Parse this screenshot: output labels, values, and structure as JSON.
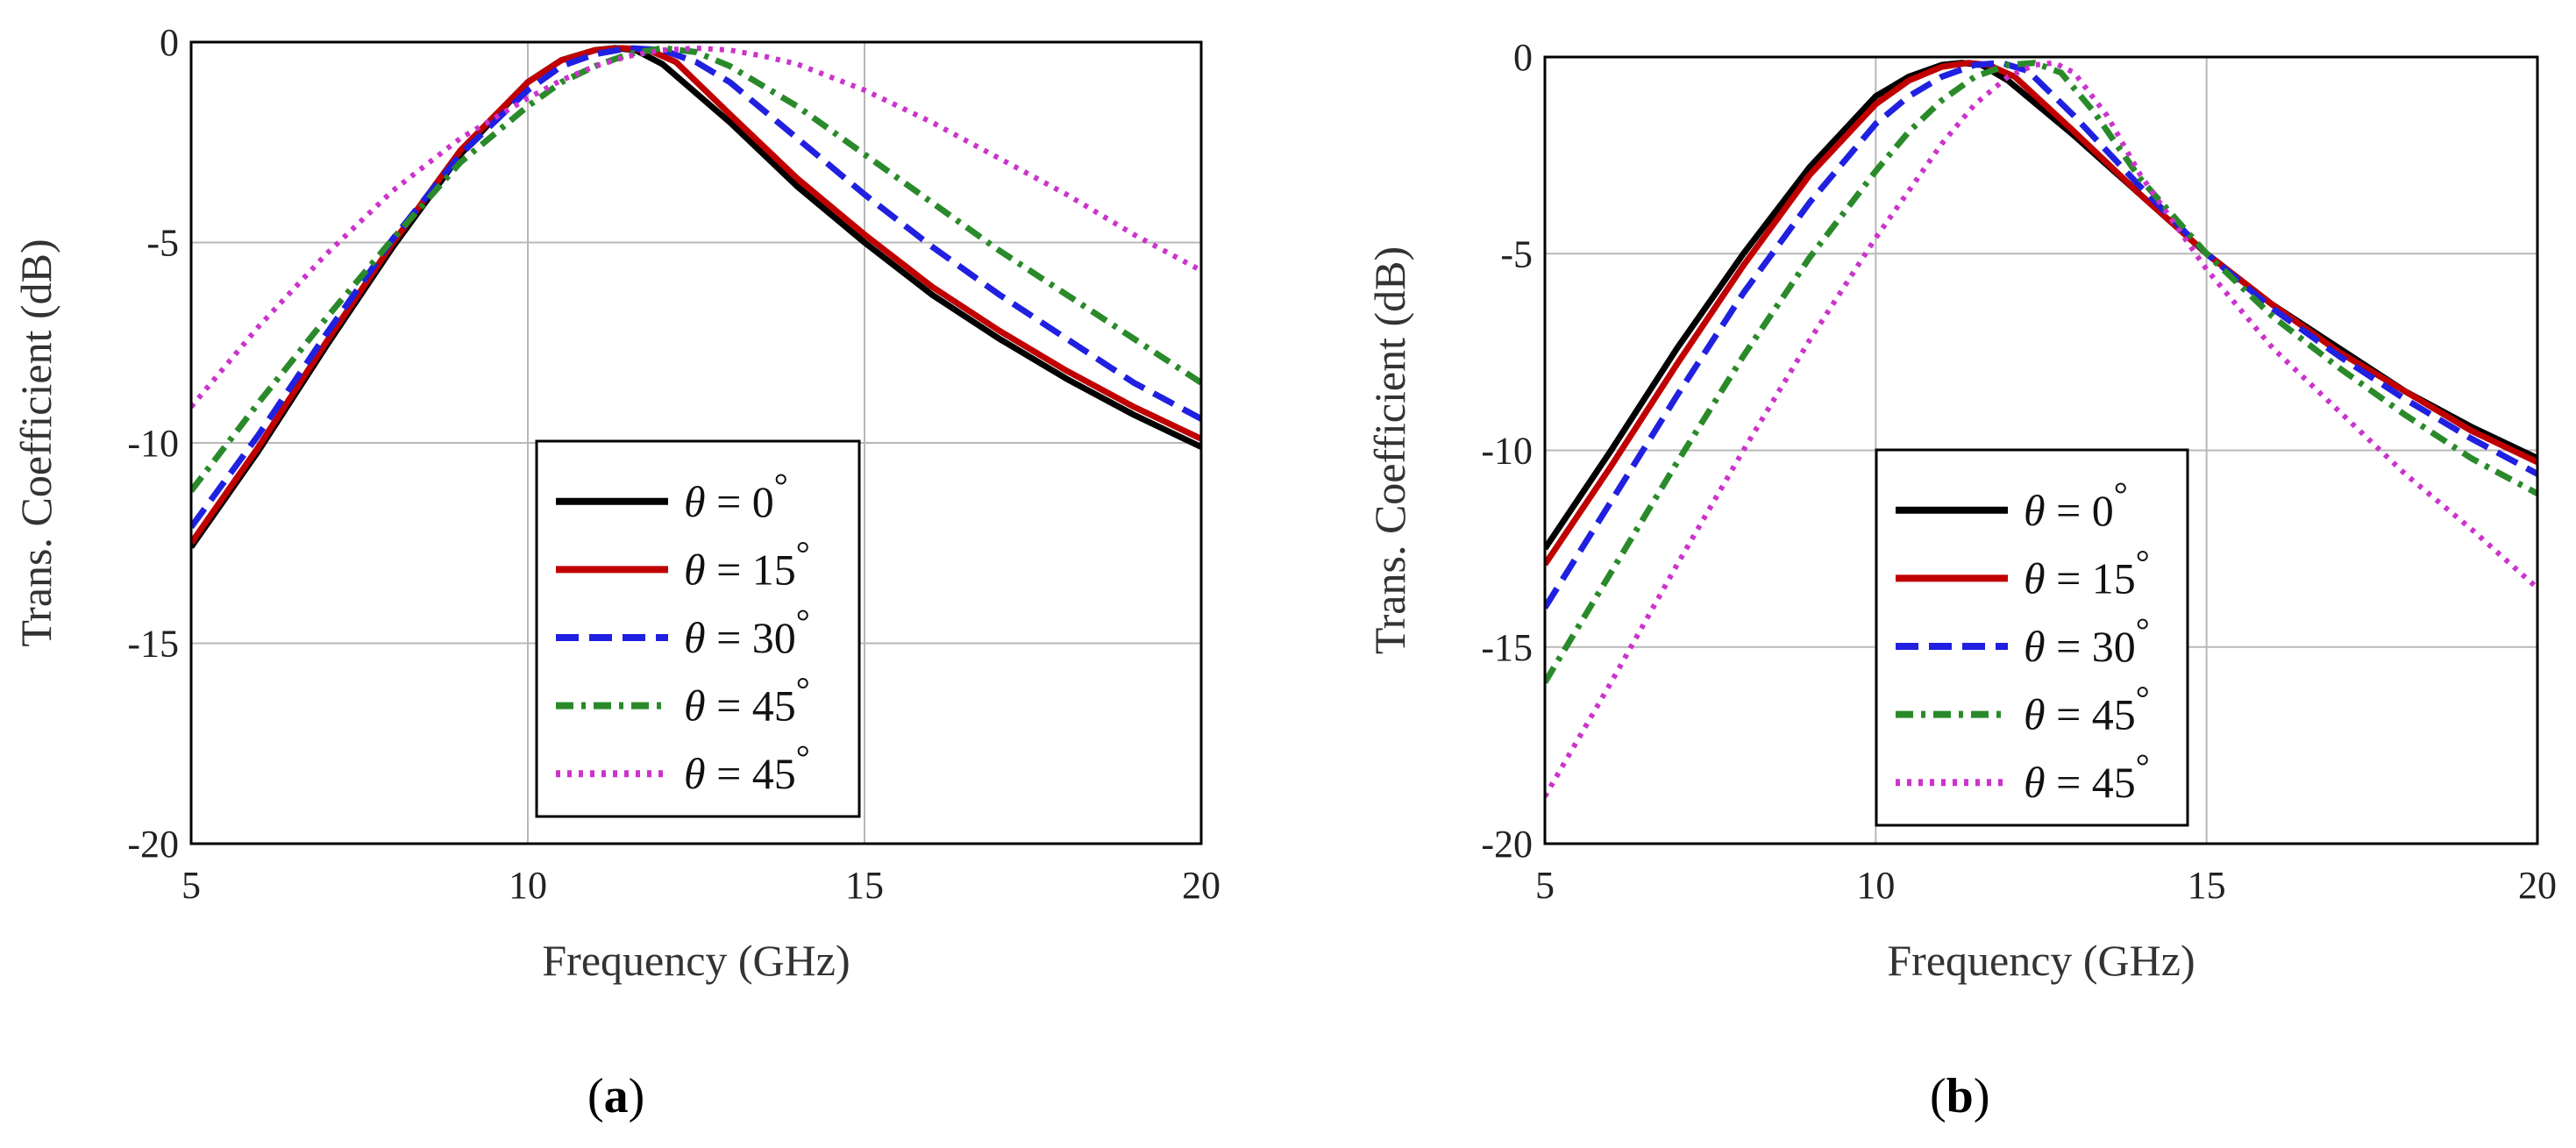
{
  "chart_data": [
    {
      "type": "line",
      "panel": "a",
      "caption_open": "(",
      "caption_letter": "a",
      "caption_close": ")",
      "xlabel": "Frequency (GHz)",
      "ylabel": "Trans. Coefficient (dB)",
      "xlim": [
        5,
        20
      ],
      "ylim": [
        -20,
        0
      ],
      "xticks": [
        5,
        10,
        15,
        20
      ],
      "yticks": [
        0,
        -5,
        -10,
        -15,
        -20
      ],
      "xtick_labels": [
        "5",
        "10",
        "15",
        "20"
      ],
      "ytick_labels": [
        "0",
        "-5",
        "-10",
        "-15",
        "-20"
      ],
      "grid": true,
      "legend_position": "lower-center",
      "series": [
        {
          "name": "θ = 0°",
          "legend_text": "θ = 0",
          "degree": "°",
          "color": "#000000",
          "style": "solid",
          "x": [
            5,
            6,
            7,
            8,
            9,
            10,
            10.5,
            11,
            11.3,
            11.6,
            12,
            13,
            14,
            15,
            16,
            17,
            18,
            19,
            20
          ],
          "y": [
            -12.6,
            -10.2,
            -7.6,
            -5.1,
            -2.8,
            -1.0,
            -0.45,
            -0.2,
            -0.15,
            -0.2,
            -0.55,
            -2.0,
            -3.6,
            -5.0,
            -6.3,
            -7.4,
            -8.4,
            -9.3,
            -10.1
          ]
        },
        {
          "name": "θ = 15°",
          "legend_text": "θ = 15",
          "degree": "°",
          "color": "#c00000",
          "style": "solid",
          "x": [
            5,
            6,
            7,
            8,
            9,
            10,
            10.5,
            11,
            11.4,
            11.8,
            12.2,
            13,
            14,
            15,
            16,
            17,
            18,
            19,
            20
          ],
          "y": [
            -12.5,
            -10.1,
            -7.5,
            -5.0,
            -2.7,
            -1.0,
            -0.45,
            -0.2,
            -0.15,
            -0.2,
            -0.5,
            -1.8,
            -3.4,
            -4.8,
            -6.1,
            -7.2,
            -8.2,
            -9.1,
            -9.9
          ]
        },
        {
          "name": "θ = 30°",
          "legend_text": "θ = 30",
          "degree": "°",
          "color": "#2020e0",
          "style": "dashed",
          "x": [
            5,
            6,
            7,
            8,
            9,
            10,
            10.5,
            11,
            11.5,
            12,
            12.5,
            13,
            14,
            15,
            16,
            17,
            18,
            19,
            20
          ],
          "y": [
            -12.1,
            -9.8,
            -7.3,
            -4.9,
            -2.8,
            -1.2,
            -0.6,
            -0.3,
            -0.15,
            -0.2,
            -0.5,
            -1.0,
            -2.4,
            -3.8,
            -5.1,
            -6.3,
            -7.4,
            -8.5,
            -9.4
          ]
        },
        {
          "name": "θ = 45°",
          "legend_text": "θ = 45",
          "degree": "°",
          "color": "#2a8a2a",
          "style": "dashdot",
          "x": [
            5,
            6,
            7,
            8,
            9,
            10,
            10.5,
            11,
            11.5,
            12,
            12.5,
            13,
            14,
            15,
            16,
            17,
            18,
            19,
            20
          ],
          "y": [
            -11.2,
            -9.0,
            -6.9,
            -4.9,
            -3.0,
            -1.6,
            -1.0,
            -0.6,
            -0.3,
            -0.15,
            -0.25,
            -0.6,
            -1.6,
            -2.8,
            -4.0,
            -5.2,
            -6.3,
            -7.4,
            -8.5
          ]
        },
        {
          "name": "θ = 45°",
          "legend_text": "θ = 45",
          "degree": "°",
          "color": "#cc33cc",
          "style": "dotted",
          "x": [
            5,
            6,
            7,
            8,
            9,
            10,
            10.5,
            11,
            11.5,
            12,
            12.5,
            13,
            13.5,
            14,
            15,
            16,
            17,
            18,
            19,
            20
          ],
          "y": [
            -9.1,
            -7.1,
            -5.3,
            -3.7,
            -2.4,
            -1.4,
            -0.95,
            -0.6,
            -0.35,
            -0.2,
            -0.15,
            -0.2,
            -0.35,
            -0.55,
            -1.2,
            -2.0,
            -2.9,
            -3.8,
            -4.8,
            -5.7
          ]
        }
      ]
    },
    {
      "type": "line",
      "panel": "b",
      "caption_open": "(",
      "caption_letter": "b",
      "caption_close": ")",
      "xlabel": "Frequency (GHz)",
      "ylabel": "Trans. Coefficient (dB)",
      "xlim": [
        5,
        20
      ],
      "ylim": [
        -20,
        0
      ],
      "xticks": [
        5,
        10,
        15,
        20
      ],
      "yticks": [
        0,
        -5,
        -10,
        -15,
        -20
      ],
      "xtick_labels": [
        "5",
        "10",
        "15",
        "20"
      ],
      "ytick_labels": [
        "0",
        "-5",
        "-10",
        "-15",
        "-20"
      ],
      "grid": true,
      "legend_position": "lower-center",
      "series": [
        {
          "name": "θ = 0°",
          "legend_text": "θ = 0",
          "degree": "°",
          "color": "#000000",
          "style": "solid",
          "x": [
            5,
            6,
            7,
            8,
            9,
            10,
            10.5,
            11,
            11.3,
            11.6,
            12,
            13,
            14,
            15,
            16,
            17,
            18,
            19,
            20
          ],
          "y": [
            -12.5,
            -10.0,
            -7.4,
            -5.0,
            -2.8,
            -1.0,
            -0.5,
            -0.2,
            -0.15,
            -0.2,
            -0.6,
            -2.0,
            -3.5,
            -5.0,
            -6.3,
            -7.4,
            -8.5,
            -9.4,
            -10.2
          ]
        },
        {
          "name": "θ = 15°",
          "legend_text": "θ = 15",
          "degree": "°",
          "color": "#c00000",
          "style": "solid",
          "x": [
            5,
            6,
            7,
            8,
            9,
            10,
            10.5,
            11,
            11.4,
            11.7,
            12.1,
            13,
            14,
            15,
            16,
            17,
            18,
            19,
            20
          ],
          "y": [
            -12.9,
            -10.4,
            -7.8,
            -5.3,
            -3.0,
            -1.2,
            -0.6,
            -0.25,
            -0.15,
            -0.2,
            -0.5,
            -1.9,
            -3.5,
            -5.0,
            -6.3,
            -7.5,
            -8.5,
            -9.5,
            -10.3
          ]
        },
        {
          "name": "θ = 30°",
          "legend_text": "θ = 30",
          "degree": "°",
          "color": "#2020e0",
          "style": "dashed",
          "x": [
            5,
            6,
            7,
            8,
            9,
            10,
            10.5,
            11,
            11.5,
            11.9,
            12.3,
            13,
            14,
            15,
            16,
            17,
            18,
            19,
            20
          ],
          "y": [
            -14.0,
            -11.3,
            -8.6,
            -6.0,
            -3.7,
            -1.7,
            -1.0,
            -0.5,
            -0.2,
            -0.15,
            -0.35,
            -1.5,
            -3.3,
            -5.0,
            -6.4,
            -7.6,
            -8.7,
            -9.7,
            -10.6
          ]
        },
        {
          "name": "θ = 45°",
          "legend_text": "θ = 45",
          "degree": "°",
          "color": "#2a8a2a",
          "style": "dashdot",
          "x": [
            5,
            6,
            7,
            8,
            9,
            10,
            10.5,
            11,
            11.5,
            12,
            12.4,
            12.8,
            13.3,
            14,
            15,
            16,
            17,
            18,
            19,
            20
          ],
          "y": [
            -15.9,
            -13.1,
            -10.3,
            -7.6,
            -5.1,
            -2.9,
            -1.9,
            -1.1,
            -0.5,
            -0.2,
            -0.15,
            -0.4,
            -1.4,
            -3.1,
            -5.0,
            -6.6,
            -7.9,
            -9.1,
            -10.2,
            -11.1
          ]
        },
        {
          "name": "θ = 45°",
          "legend_text": "θ = 45",
          "degree": "°",
          "color": "#cc33cc",
          "style": "dotted",
          "x": [
            5,
            6,
            7,
            8,
            9,
            10,
            10.5,
            11,
            11.5,
            12,
            12.4,
            12.7,
            13,
            13.5,
            14,
            15,
            16,
            17,
            18,
            19,
            20
          ],
          "y": [
            -18.8,
            -15.9,
            -12.9,
            -10.0,
            -7.2,
            -4.6,
            -3.4,
            -2.2,
            -1.2,
            -0.5,
            -0.2,
            -0.15,
            -0.4,
            -1.5,
            -3.0,
            -5.4,
            -7.4,
            -9.0,
            -10.6,
            -12.0,
            -13.5
          ]
        }
      ]
    }
  ]
}
